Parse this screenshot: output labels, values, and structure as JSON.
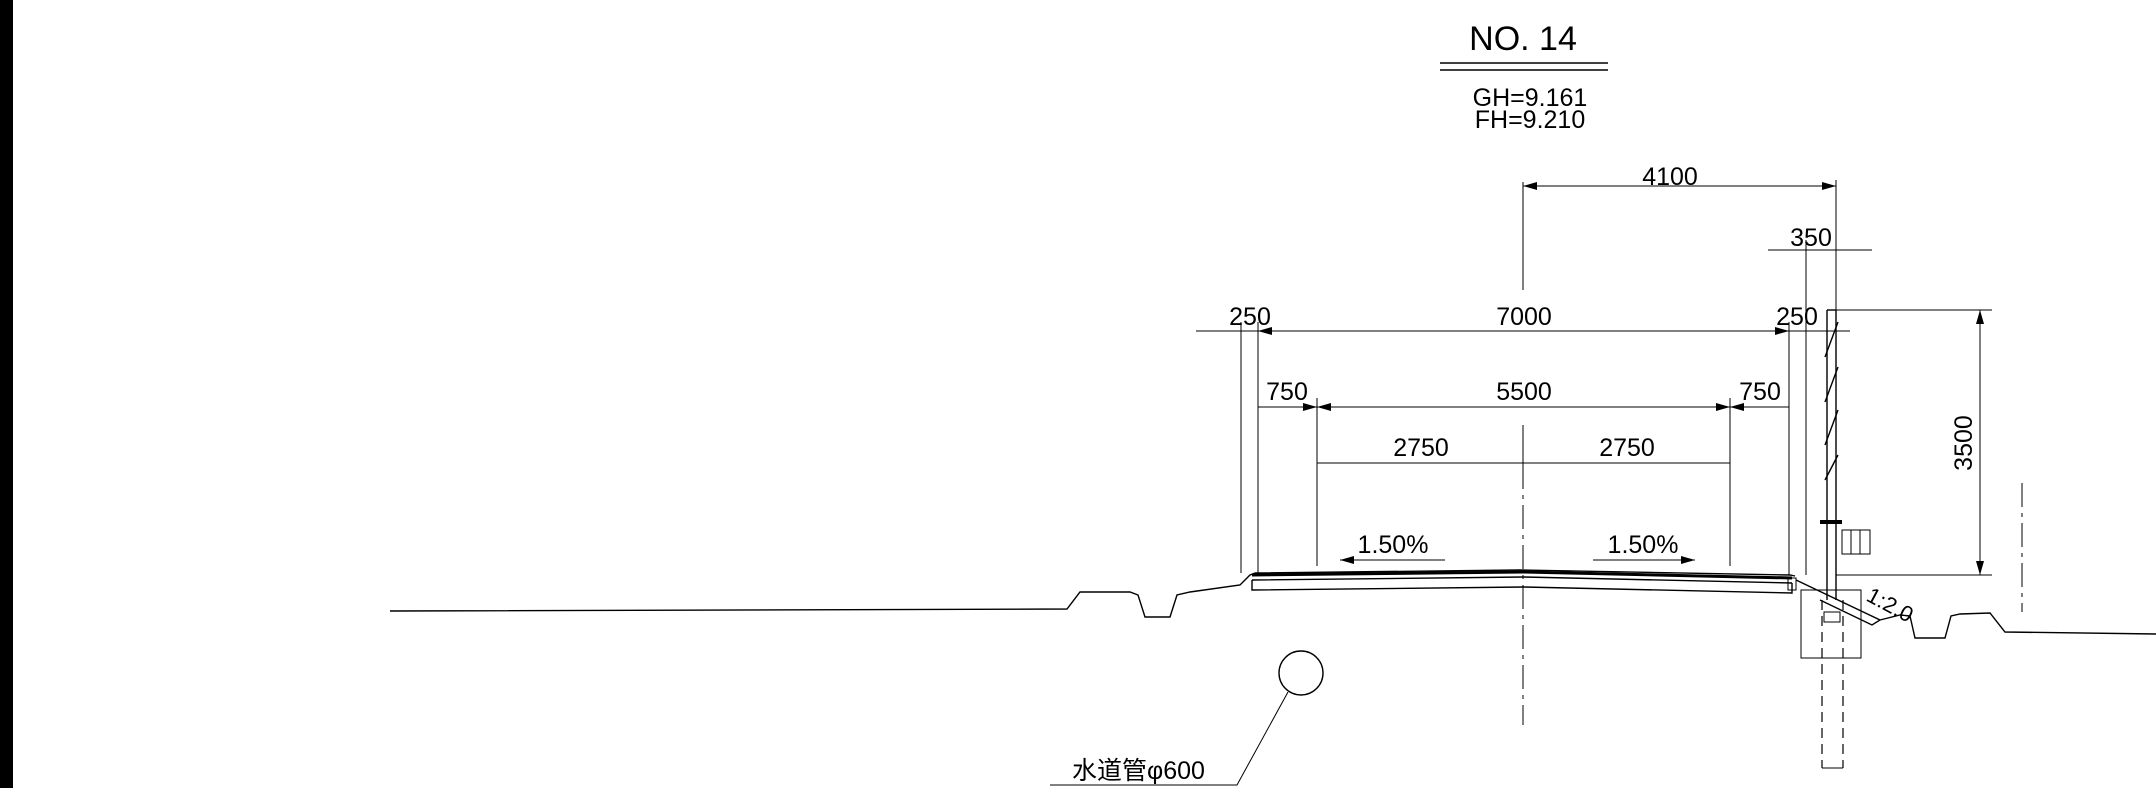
{
  "section": {
    "title": "NO. 14",
    "gh": "GH=9.161",
    "fh": "FH=9.210"
  },
  "dimensions": {
    "d4100": "4100",
    "d350": "350",
    "d250_left": "250",
    "d7000": "7000",
    "d250_right": "250",
    "d750_left": "750",
    "d5500": "5500",
    "d750_right": "750",
    "d2750_left": "2750",
    "d2750_right": "2750",
    "d3500": "3500"
  },
  "slopes": {
    "left": "1.50%",
    "right": "1.50%",
    "embankment": "1:2.0"
  },
  "annotations": {
    "water_pipe": "水道管φ600"
  }
}
